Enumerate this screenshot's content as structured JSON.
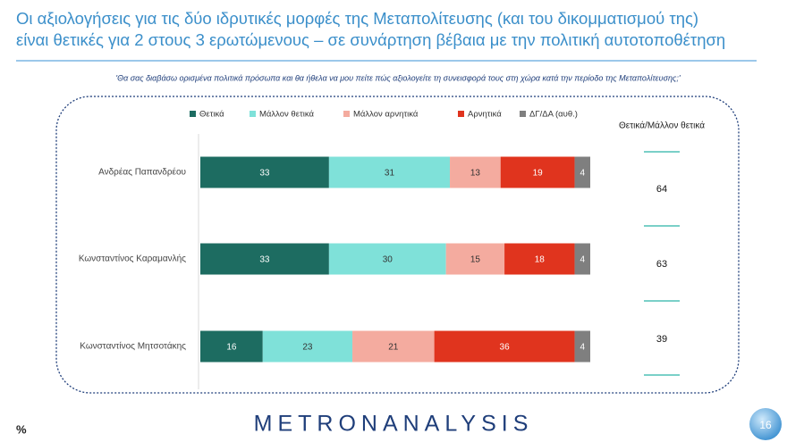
{
  "chart_data": {
    "type": "stacked-bar",
    "title_lines": [
      "Οι αξιολογήσεις για τις δύο ιδρυτικές μορφές της Μεταπολίτευσης (και του δικομματισμού της)",
      "είναι θετικές για 2 στους 3 ερωτώμενους – σε συνάρτηση βέβαια με την πολιτική αυτοτοποθέτηση"
    ],
    "subtitle": "'Θα σας διαβάσω ορισμένα πολιτικά πρόσωπα και θα ήθελα να μου πείτε πώς αξιολογείτε τη συνεισφορά τους στη χώρα κατά την περίοδο της Μεταπολίτευσης;'",
    "categories": [
      "Ανδρέας Παπανδρέου",
      "Κωνσταντίνος Καραμανλής",
      "Κωνσταντίνος Μητσοτάκης"
    ],
    "series": [
      {
        "name": "Θετικά",
        "color": "#1d6c61",
        "values": [
          33,
          33,
          16
        ]
      },
      {
        "name": "Μάλλον θετικά",
        "color": "#7fe1d9",
        "values": [
          31,
          30,
          23
        ]
      },
      {
        "name": "Μάλλον αρνητικά",
        "color": "#f4ab9f",
        "values": [
          13,
          15,
          21
        ]
      },
      {
        "name": "Αρνητικά",
        "color": "#e0341e",
        "values": [
          19,
          18,
          36
        ]
      },
      {
        "name": "ΔΓ/ΔΑ (αυθ.)",
        "color": "#7f7f7f",
        "values": [
          4,
          4,
          4
        ]
      }
    ],
    "summary_title": "Θετικά/Μάλλον θετικά",
    "summary_values": [
      64,
      63,
      39
    ],
    "unit_label": "%",
    "brand": "METRONANALYSIS",
    "page_number": "16"
  }
}
